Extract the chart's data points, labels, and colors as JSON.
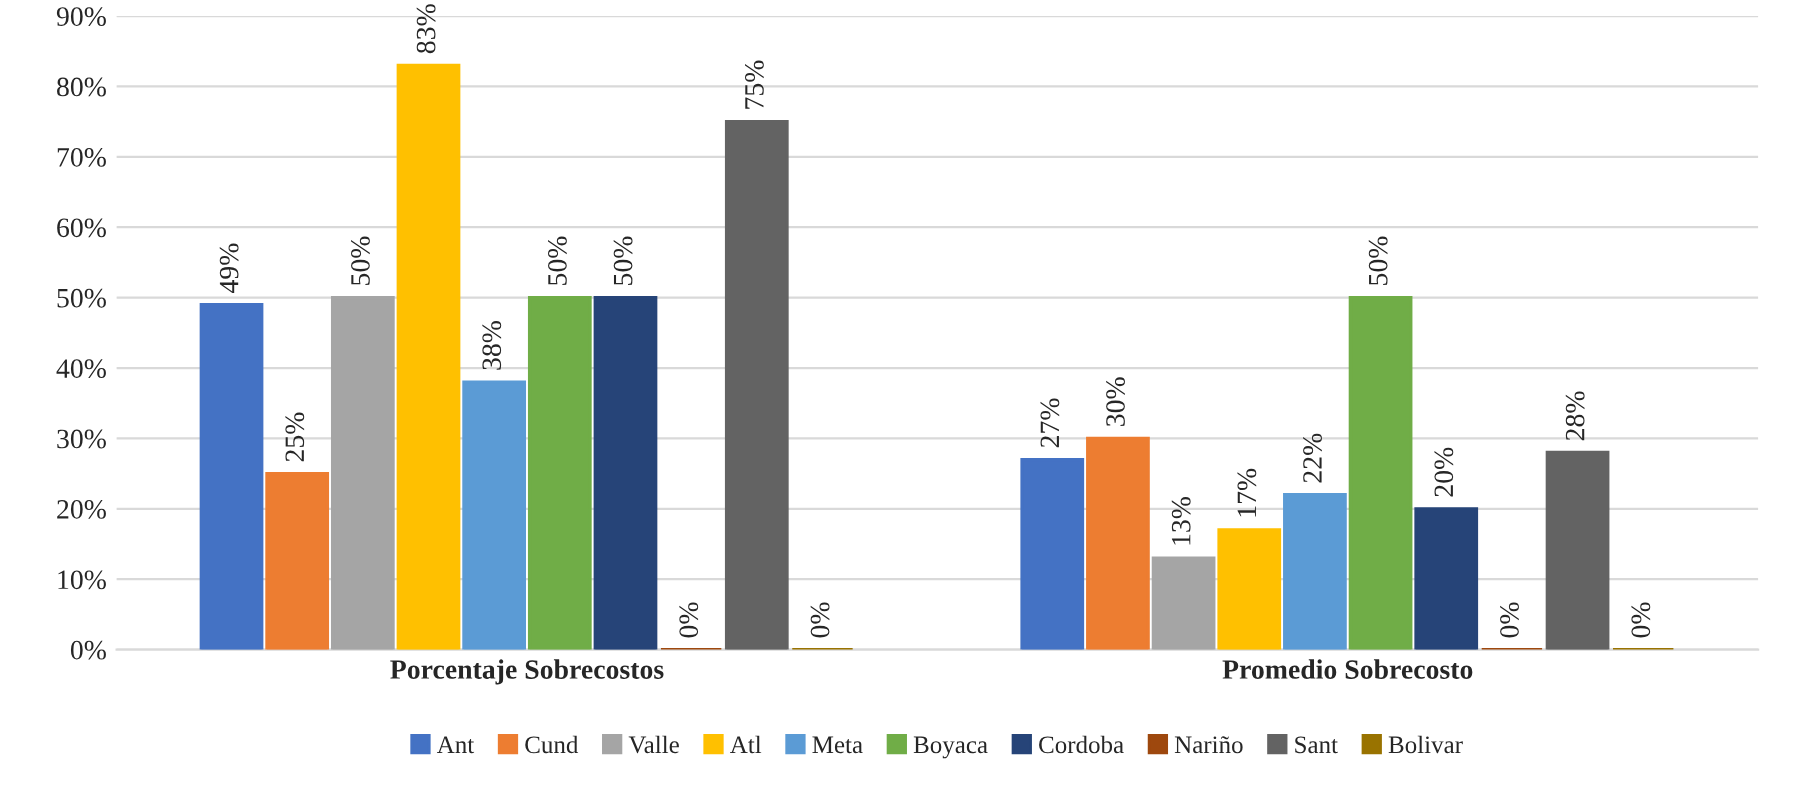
{
  "chart_data": {
    "type": "bar",
    "categories": [
      "Porcentaje Sobrecostos",
      "Promedio Sobrecosto"
    ],
    "series": [
      {
        "name": "Ant",
        "color": "#4472c4",
        "values": [
          49,
          27
        ],
        "value_labels": [
          "49%",
          "27%"
        ]
      },
      {
        "name": "Cund",
        "color": "#ed7d31",
        "values": [
          25,
          30
        ],
        "value_labels": [
          "25%",
          "30%"
        ]
      },
      {
        "name": "Valle",
        "color": "#a5a5a5",
        "values": [
          50,
          13
        ],
        "value_labels": [
          "50%",
          "13%"
        ]
      },
      {
        "name": "Atl",
        "color": "#ffc000",
        "values": [
          83,
          17
        ],
        "value_labels": [
          "83%",
          "17%"
        ]
      },
      {
        "name": "Meta",
        "color": "#5b9bd5",
        "values": [
          38,
          22
        ],
        "value_labels": [
          "38%",
          "22%"
        ]
      },
      {
        "name": "Boyaca",
        "color": "#70ad47",
        "values": [
          50,
          50
        ],
        "value_labels": [
          "50%",
          "50%"
        ]
      },
      {
        "name": "Cordoba",
        "color": "#264478",
        "values": [
          50,
          20
        ],
        "value_labels": [
          "50%",
          "20%"
        ]
      },
      {
        "name": "Nariño",
        "color": "#9e480e",
        "values": [
          0,
          0
        ],
        "value_labels": [
          "0%",
          "0%"
        ]
      },
      {
        "name": "Sant",
        "color": "#636363",
        "values": [
          75,
          28
        ],
        "value_labels": [
          "75%",
          "28%"
        ]
      },
      {
        "name": "Bolivar",
        "color": "#997300",
        "values": [
          0,
          0
        ],
        "value_labels": [
          "0%",
          "0%"
        ]
      }
    ],
    "ylim": [
      0,
      90
    ],
    "yticks": [
      {
        "value": 0,
        "label": "0%"
      },
      {
        "value": 10,
        "label": "10%"
      },
      {
        "value": 20,
        "label": "20%"
      },
      {
        "value": 30,
        "label": "30%"
      },
      {
        "value": 40,
        "label": "40%"
      },
      {
        "value": 50,
        "label": "50%"
      },
      {
        "value": 60,
        "label": "60%"
      },
      {
        "value": 70,
        "label": "70%"
      },
      {
        "value": 80,
        "label": "80%"
      },
      {
        "value": 90,
        "label": "90%"
      }
    ],
    "grid": "y",
    "legend": "bottom"
  }
}
